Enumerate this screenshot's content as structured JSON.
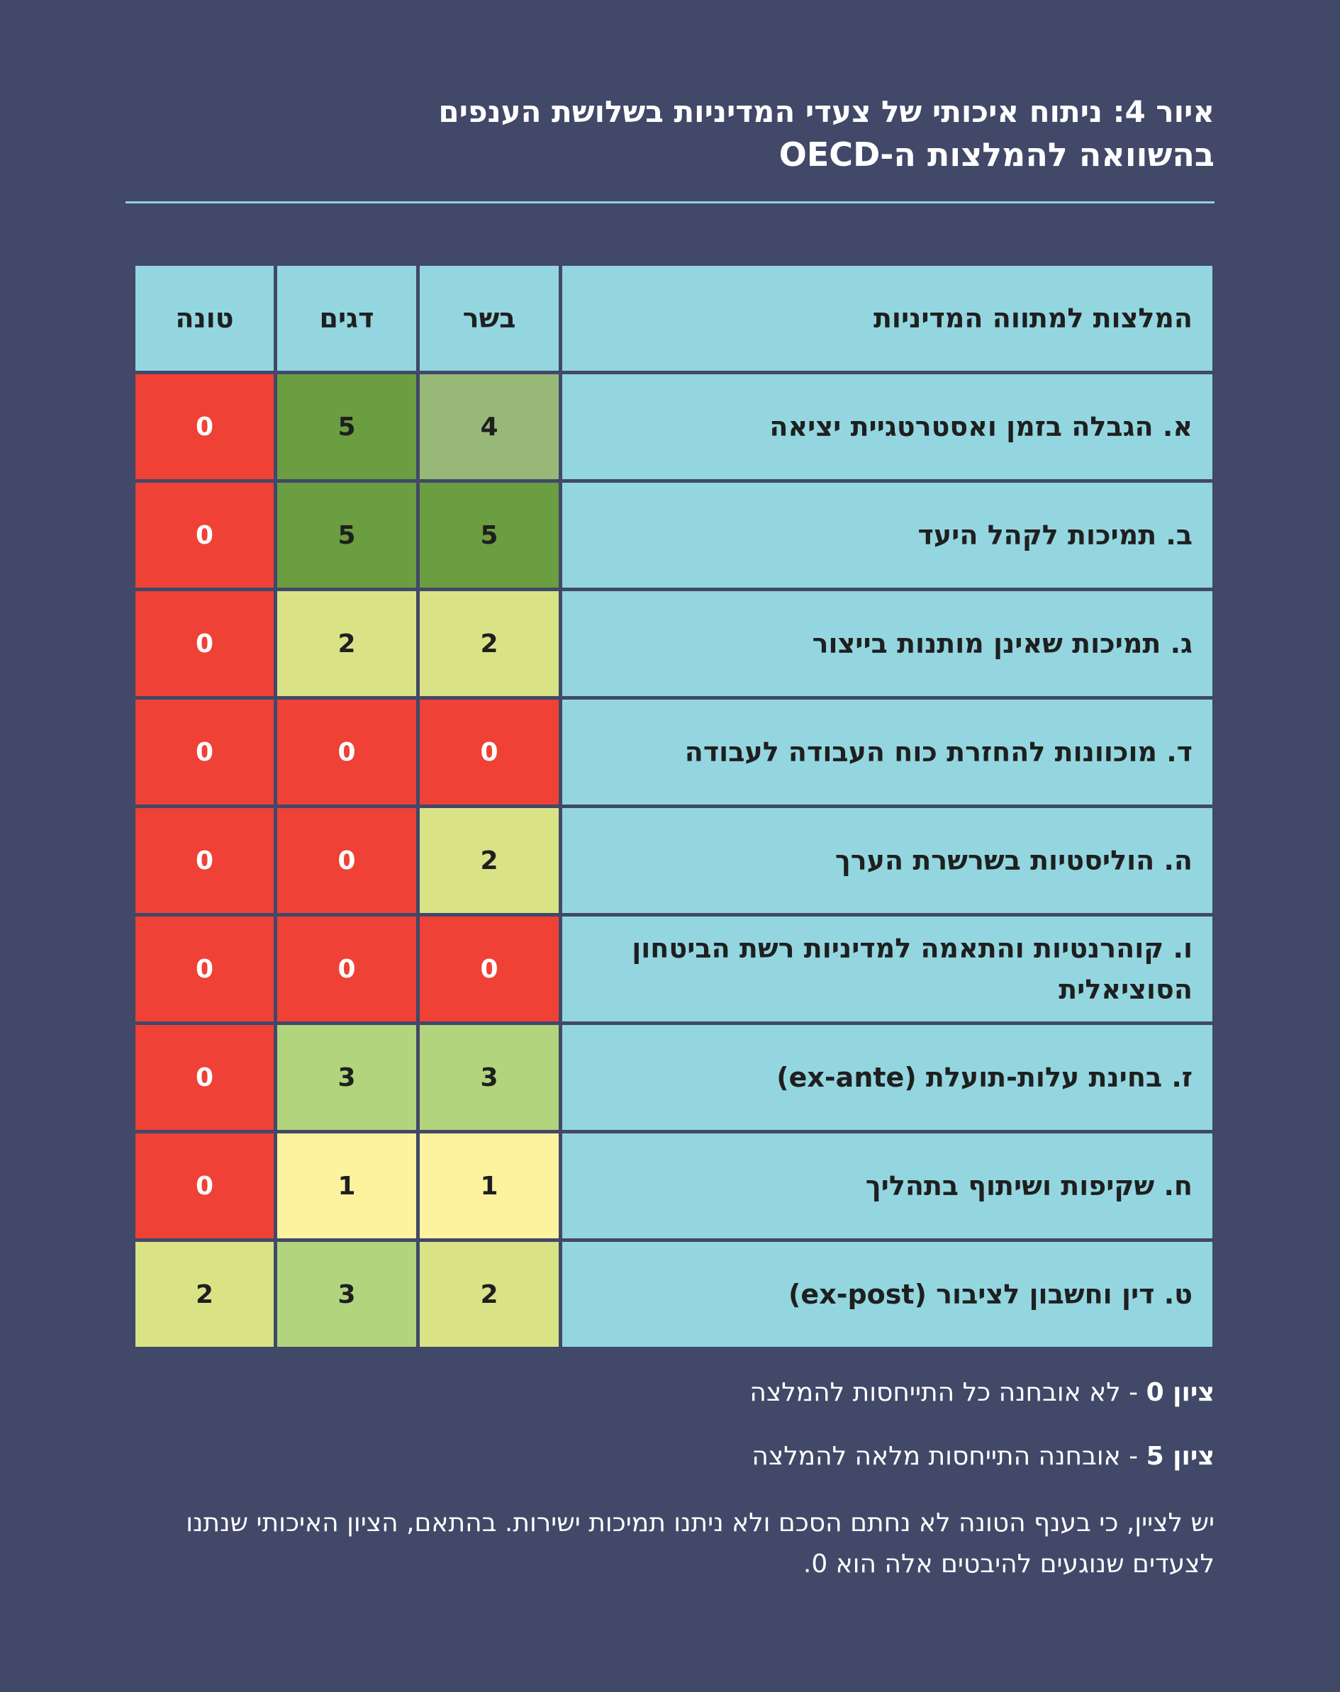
{
  "title": {
    "line1": "איור 4: ניתוח איכותי של צעדי המדיניות בשלושת הענפים",
    "line2": "בהשוואה להמלצות ה-OECD"
  },
  "chart_data": {
    "type": "table",
    "header": [
      "המלצות למתווה המדיניות",
      "בשר",
      "דגים",
      "טונה"
    ],
    "rows": [
      {
        "label": "א. הגבלה בזמן ואסטרטגיית יציאה",
        "values": [
          4,
          5,
          0
        ]
      },
      {
        "label": "ב. תמיכות לקהל היעד",
        "values": [
          5,
          5,
          0
        ]
      },
      {
        "label": "ג. תמיכות שאינן מותנות בייצור",
        "values": [
          2,
          2,
          0
        ]
      },
      {
        "label": "ד. מוכוונות להחזרת כוח העבודה לעבודה",
        "values": [
          0,
          0,
          0
        ]
      },
      {
        "label": "ה. הוליסטיות בשרשרת הערך",
        "values": [
          2,
          0,
          0
        ]
      },
      {
        "label": "ו. קוהרנטיות והתאמה למדיניות רשת הביטחון הסוציאלית",
        "values": [
          0,
          0,
          0
        ]
      },
      {
        "label": "ז. בחינת עלות-תועלת (ex-ante)",
        "values": [
          3,
          3,
          0
        ]
      },
      {
        "label": "ח. שקיפות ושיתוף בתהליך",
        "values": [
          1,
          1,
          0
        ]
      },
      {
        "label": "ט. דין וחשבון לציבור (ex-post)",
        "values": [
          2,
          3,
          2
        ]
      }
    ],
    "score_colors": {
      "0": "#ef4136",
      "1": "#fdf29e",
      "2": "#d9e386",
      "3": "#b2d47c",
      "4": "#98b878",
      "5": "#6a9e40"
    }
  },
  "legend": {
    "items": [
      {
        "key": "ציון 0",
        "text": " - לא אובחנה כל התייחסות להמלצה"
      },
      {
        "key": "ציון 5",
        "text": " - אובחנה התייחסות מלאה להמלצה"
      }
    ]
  },
  "note": "יש לציין, כי בענף הטונה לא נחתם הסכם ולא ניתנו תמיכות ישירות. בהתאם, הציון האיכותי שנתנו לצעדים שנוגעים להיבטים אלה הוא 0."
}
